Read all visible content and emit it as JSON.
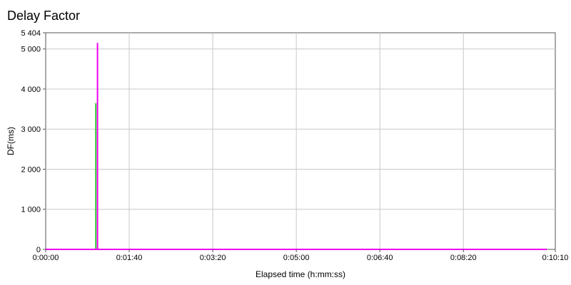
{
  "chart_data": {
    "type": "line",
    "title": "Delay Factor",
    "xlabel": "Elapsed time (h:mm:ss)",
    "ylabel": "DF(ms)",
    "xlim": [
      "0:00:00",
      "0:10:10"
    ],
    "ylim": [
      0,
      5404
    ],
    "x_ticks": [
      "0:00:00",
      "0:01:40",
      "0:03:20",
      "0:05:00",
      "0:06:40",
      "0:08:20",
      "0:10:10"
    ],
    "y_ticks": [
      "0",
      "1 000",
      "2 000",
      "3 000",
      "4 000",
      "5 000",
      "5 404"
    ],
    "grid": true,
    "series": [
      {
        "color": "#33cc33",
        "points": [
          {
            "x": "0:00:00",
            "y": 0
          },
          {
            "x": "0:01:00",
            "y": 0
          },
          {
            "x": "0:01:00",
            "y": 3650
          },
          {
            "x": "0:01:00",
            "y": 0
          },
          {
            "x": "0:10:00",
            "y": 0
          }
        ]
      },
      {
        "color": "#ee00ee",
        "points": [
          {
            "x": "0:00:00",
            "y": 0
          },
          {
            "x": "0:01:02",
            "y": 0
          },
          {
            "x": "0:01:02",
            "y": 5150
          },
          {
            "x": "0:01:02",
            "y": 0
          },
          {
            "x": "0:10:00",
            "y": 0
          }
        ]
      }
    ]
  }
}
